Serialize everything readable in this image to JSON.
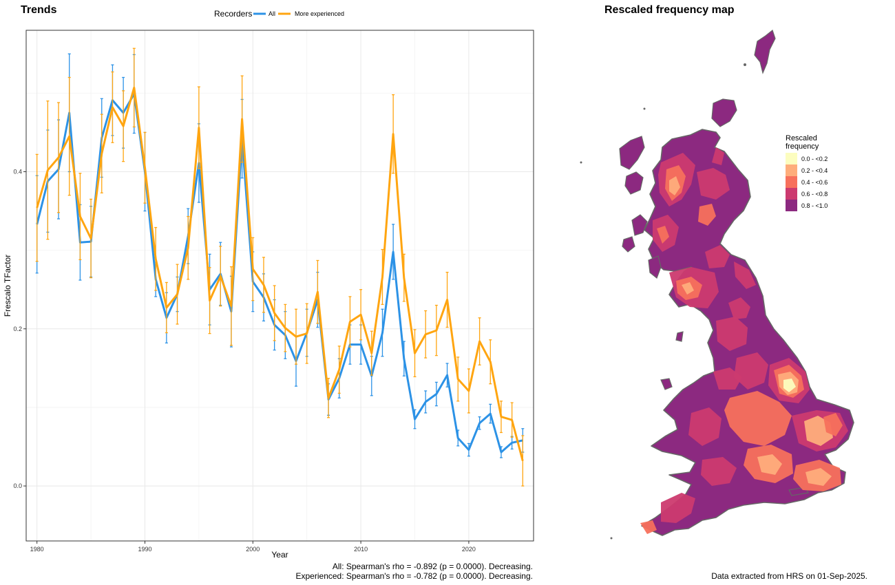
{
  "left_panel": {
    "title": "Trends"
  },
  "right_panel": {
    "title": "Rescaled frequency map"
  },
  "footnotes": {
    "all": "All: Spearman's rho = -0.892 (p = 0.0000). Decreasing.",
    "experienced": "Experienced: Spearman's rho = -0.782 (p = 0.0000). Decreasing.",
    "extraction": "Data extracted from HRS on 01-Sep-2025."
  },
  "map_legend": {
    "title_line1": "Rescaled",
    "title_line2": "frequency",
    "items": [
      {
        "label": "0.0 - <0.2",
        "color": "#FCFDBF"
      },
      {
        "label": "0.2 - <0.4",
        "color": "#FEAD7B"
      },
      {
        "label": "0.4 - <0.6",
        "color": "#F7705C"
      },
      {
        "label": "0.6 - <0.8",
        "color": "#CC3A6F"
      },
      {
        "label": "0.8 - <1.0",
        "color": "#8C2980"
      }
    ]
  },
  "chart_data": {
    "type": "line",
    "title": "Trends",
    "xlabel": "Year",
    "ylabel": "Frescalo TFactor",
    "xlim": [
      1979,
      2026
    ],
    "ylim": [
      -0.07,
      0.58
    ],
    "xticks": [
      1980,
      1990,
      2000,
      2010,
      2020
    ],
    "yticks": [
      0.0,
      0.2,
      0.4
    ],
    "ytick_labels": [
      "0.0",
      "0.2",
      "0.4"
    ],
    "grid": true,
    "legend": {
      "title": "Recorders",
      "position": "top"
    },
    "x": [
      1980,
      1981,
      1982,
      1983,
      1984,
      1985,
      1986,
      1987,
      1988,
      1989,
      1990,
      1991,
      1992,
      1993,
      1994,
      1995,
      1996,
      1997,
      1998,
      1999,
      2000,
      2001,
      2002,
      2003,
      2004,
      2005,
      2006,
      2007,
      2008,
      2009,
      2010,
      2011,
      2012,
      2013,
      2014,
      2015,
      2016,
      2017,
      2018,
      2019,
      2020,
      2021,
      2022,
      2023,
      2024,
      2025
    ],
    "series": [
      {
        "name": "All",
        "color": "#2C92E6",
        "values": [
          0.333,
          0.388,
          0.403,
          0.475,
          0.31,
          0.311,
          0.443,
          0.491,
          0.475,
          0.499,
          0.4,
          0.263,
          0.214,
          0.244,
          0.318,
          0.411,
          0.25,
          0.27,
          0.222,
          0.442,
          0.26,
          0.24,
          0.205,
          0.192,
          0.159,
          0.195,
          0.237,
          0.11,
          0.137,
          0.18,
          0.18,
          0.14,
          0.195,
          0.298,
          0.162,
          0.085,
          0.107,
          0.117,
          0.141,
          0.061,
          0.046,
          0.08,
          0.092,
          0.043,
          0.055,
          0.058
        ],
        "err": [
          0.062,
          0.065,
          0.063,
          0.075,
          0.048,
          0.045,
          0.05,
          0.045,
          0.045,
          0.05,
          0.05,
          0.022,
          0.032,
          0.022,
          0.035,
          0.05,
          0.045,
          0.04,
          0.045,
          0.05,
          0.038,
          0.03,
          0.032,
          0.03,
          0.032,
          0.03,
          0.035,
          0.02,
          0.025,
          0.025,
          0.025,
          0.025,
          0.03,
          0.035,
          0.022,
          0.012,
          0.014,
          0.015,
          0.015,
          0.01,
          0.008,
          0.008,
          0.012,
          0.007,
          0.008,
          0.015
        ]
      },
      {
        "name": "More experienced",
        "color": "#FFA510",
        "values": [
          0.354,
          0.402,
          0.418,
          0.445,
          0.343,
          0.315,
          0.423,
          0.482,
          0.458,
          0.507,
          0.405,
          0.289,
          0.227,
          0.244,
          0.303,
          0.456,
          0.236,
          0.267,
          0.229,
          0.467,
          0.276,
          0.256,
          0.22,
          0.201,
          0.19,
          0.194,
          0.247,
          0.112,
          0.148,
          0.209,
          0.218,
          0.169,
          0.266,
          0.448,
          0.265,
          0.169,
          0.193,
          0.198,
          0.237,
          0.136,
          0.121,
          0.184,
          0.158,
          0.088,
          0.084,
          0.032
        ],
        "err": [
          0.068,
          0.088,
          0.07,
          0.075,
          0.055,
          0.05,
          0.05,
          0.045,
          0.045,
          0.05,
          0.045,
          0.04,
          0.032,
          0.038,
          0.04,
          0.052,
          0.042,
          0.038,
          0.05,
          0.055,
          0.04,
          0.035,
          0.035,
          0.03,
          0.035,
          0.038,
          0.04,
          0.025,
          0.03,
          0.032,
          0.032,
          0.028,
          0.035,
          0.05,
          0.03,
          0.03,
          0.03,
          0.032,
          0.035,
          0.028,
          0.028,
          0.03,
          0.028,
          0.02,
          0.022,
          0.032
        ]
      }
    ]
  }
}
